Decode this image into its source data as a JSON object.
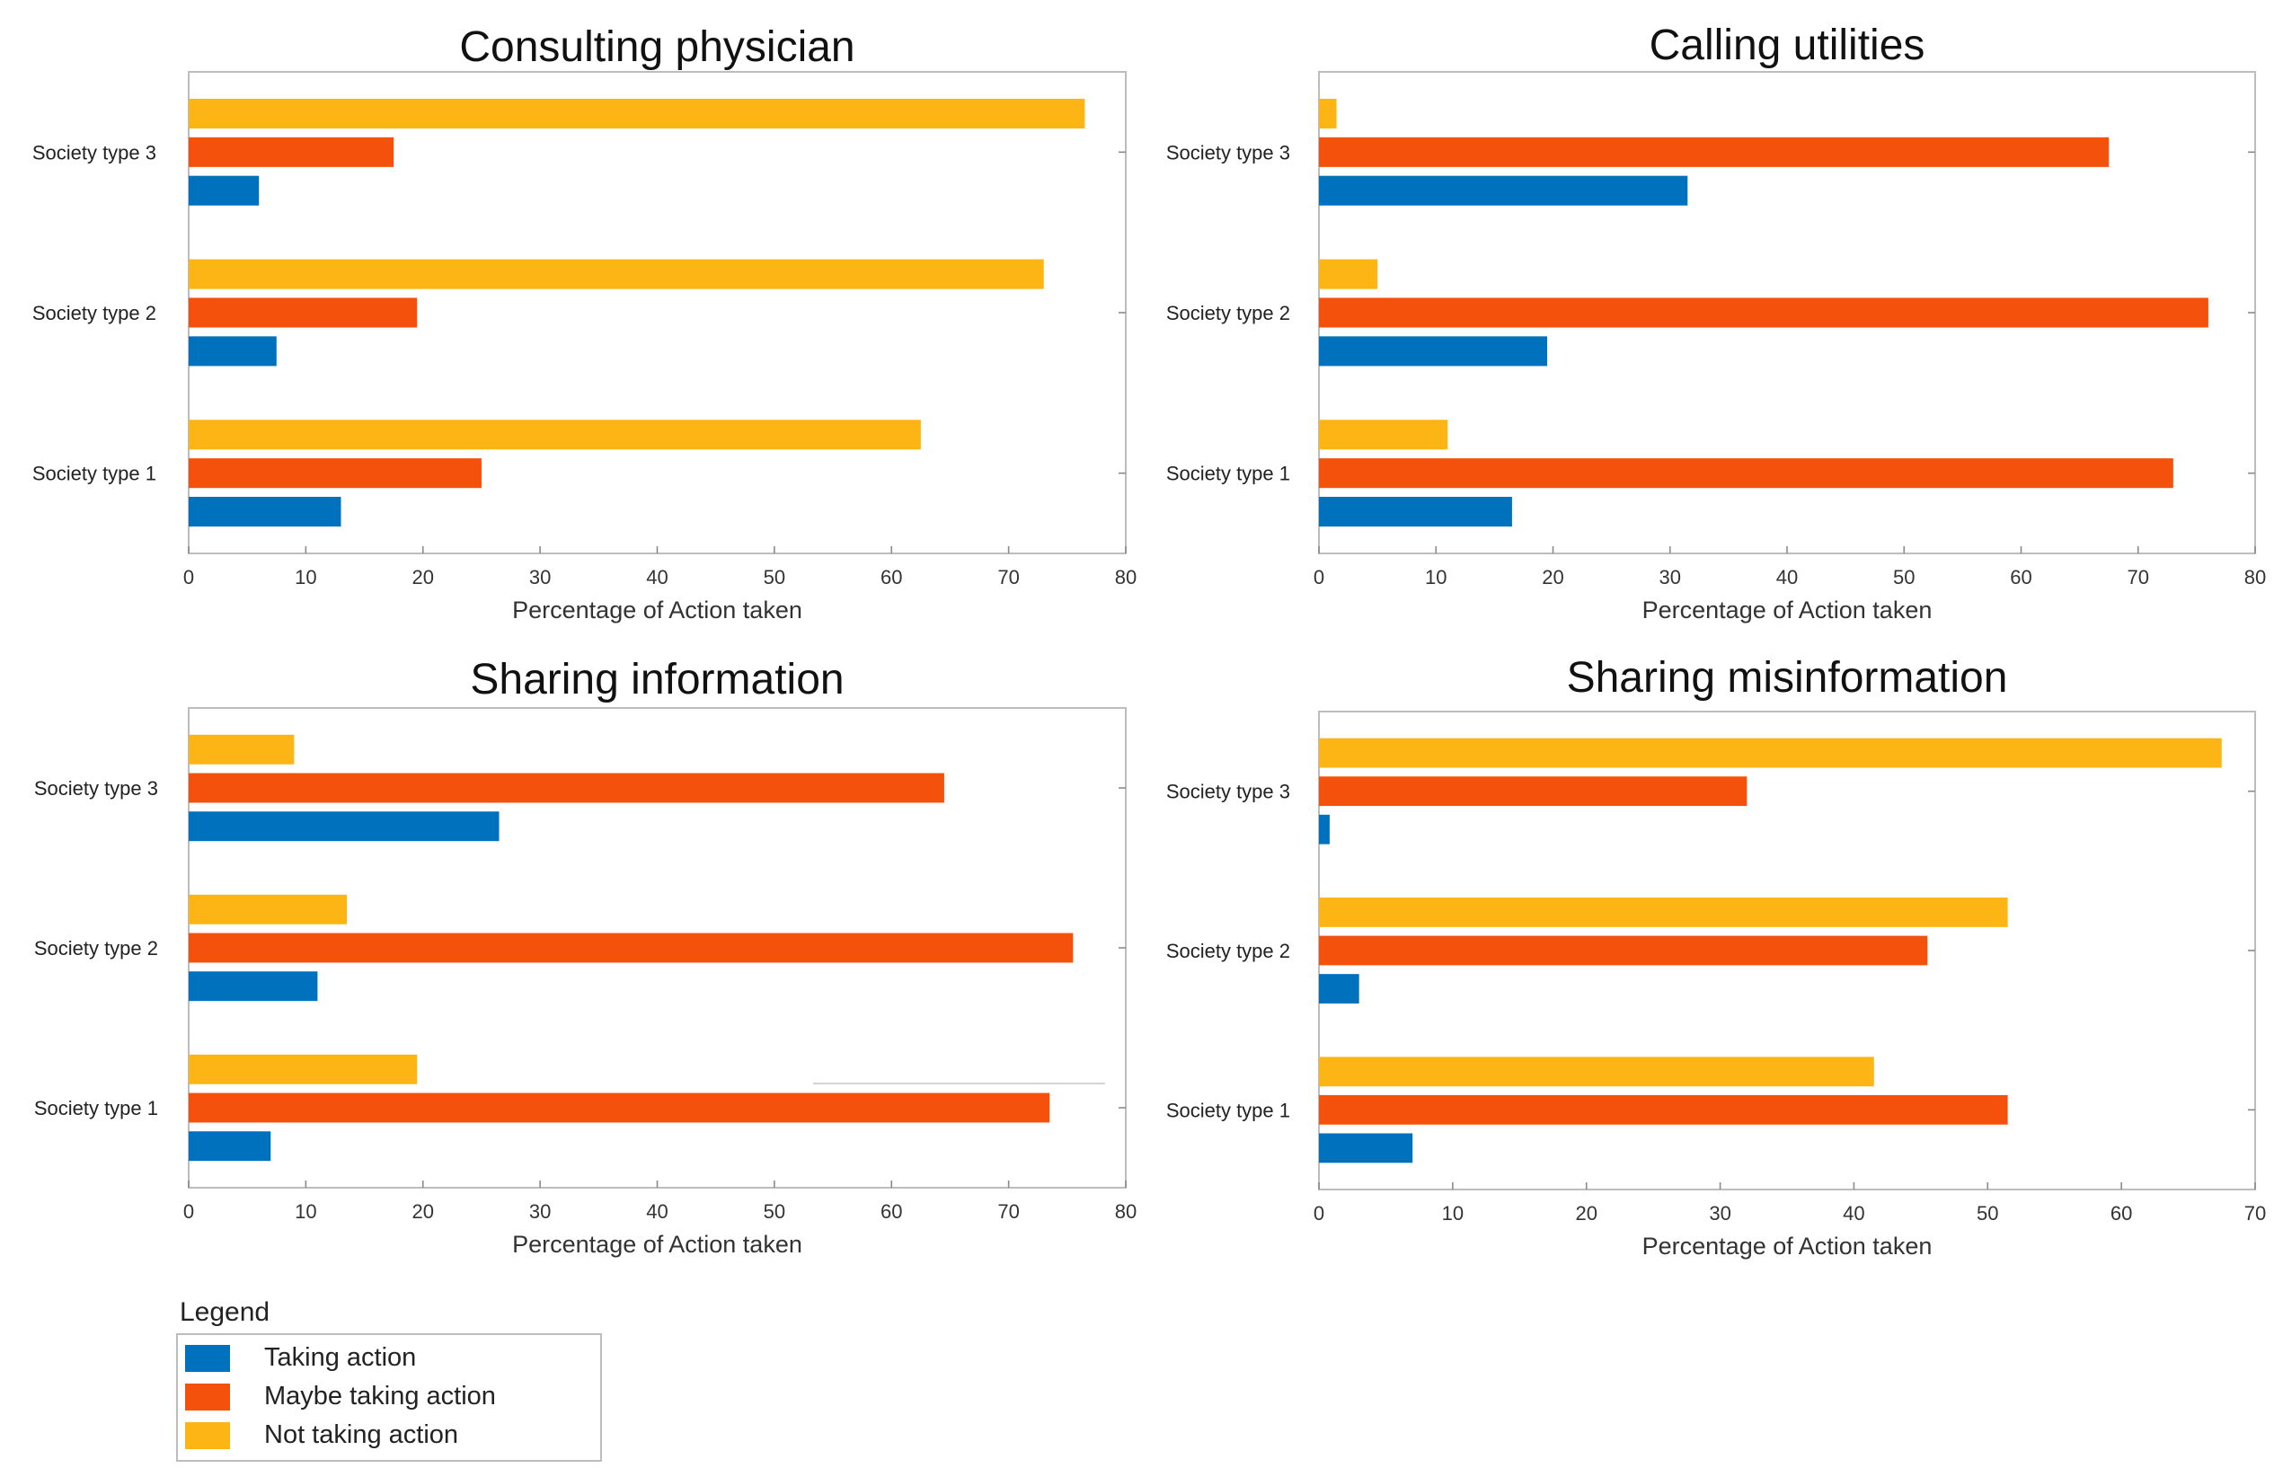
{
  "colors": {
    "taking": "#0072BD",
    "maybe": "#F4520C",
    "not": "#FDB515"
  },
  "chart_data": [
    {
      "type": "bar",
      "orientation": "horizontal",
      "title": "Consulting physician",
      "xlabel": "Percentage of Action taken",
      "xlim": [
        0,
        80
      ],
      "xticks": [
        0,
        10,
        20,
        30,
        40,
        50,
        60,
        70,
        80
      ],
      "categories": [
        "Society type 1",
        "Society type 2",
        "Society type 3"
      ],
      "series": [
        {
          "name": "Taking action",
          "values": [
            13,
            7.5,
            6
          ]
        },
        {
          "name": "Maybe taking action",
          "values": [
            25,
            19.5,
            17.5
          ]
        },
        {
          "name": "Not taking action",
          "values": [
            62.5,
            73,
            76.5
          ]
        }
      ]
    },
    {
      "type": "bar",
      "orientation": "horizontal",
      "title": "Calling utilities",
      "xlabel": "Percentage of Action taken",
      "xlim": [
        0,
        80
      ],
      "xticks": [
        0,
        10,
        20,
        30,
        40,
        50,
        60,
        70,
        80
      ],
      "categories": [
        "Society type 1",
        "Society type 2",
        "Society type 3"
      ],
      "series": [
        {
          "name": "Taking action",
          "values": [
            16.5,
            19.5,
            31.5
          ]
        },
        {
          "name": "Maybe taking action",
          "values": [
            73,
            76,
            67.5
          ]
        },
        {
          "name": "Not taking action",
          "values": [
            11,
            5,
            1.5
          ]
        }
      ]
    },
    {
      "type": "bar",
      "orientation": "horizontal",
      "title": "Sharing information",
      "xlabel": "Percentage of Action taken",
      "xlim": [
        0,
        80
      ],
      "xticks": [
        0,
        10,
        20,
        30,
        40,
        50,
        60,
        70,
        80
      ],
      "categories": [
        "Society type 1",
        "Society type 2",
        "Society type 3"
      ],
      "series": [
        {
          "name": "Taking action",
          "values": [
            7,
            11,
            26.5
          ]
        },
        {
          "name": "Maybe taking action",
          "values": [
            73.5,
            75.5,
            64.5
          ]
        },
        {
          "name": "Not taking action",
          "values": [
            19.5,
            13.5,
            9
          ]
        }
      ]
    },
    {
      "type": "bar",
      "orientation": "horizontal",
      "title": "Sharing misinformation",
      "xlabel": "Percentage of Action taken",
      "xlim": [
        0,
        70
      ],
      "xticks": [
        0,
        10,
        20,
        30,
        40,
        50,
        60,
        70
      ],
      "categories": [
        "Society type 1",
        "Society type 2",
        "Society type 3"
      ],
      "series": [
        {
          "name": "Taking action",
          "values": [
            7,
            3,
            0.8
          ]
        },
        {
          "name": "Maybe taking action",
          "values": [
            51.5,
            45.5,
            32
          ]
        },
        {
          "name": "Not taking action",
          "values": [
            41.5,
            51.5,
            67.5
          ]
        }
      ]
    }
  ],
  "legend": {
    "title": "Legend",
    "items": [
      {
        "label": "Taking action",
        "color": "#0072BD"
      },
      {
        "label": "Maybe taking action",
        "color": "#F4520C"
      },
      {
        "label": "Not taking action",
        "color": "#FDB515"
      }
    ]
  }
}
